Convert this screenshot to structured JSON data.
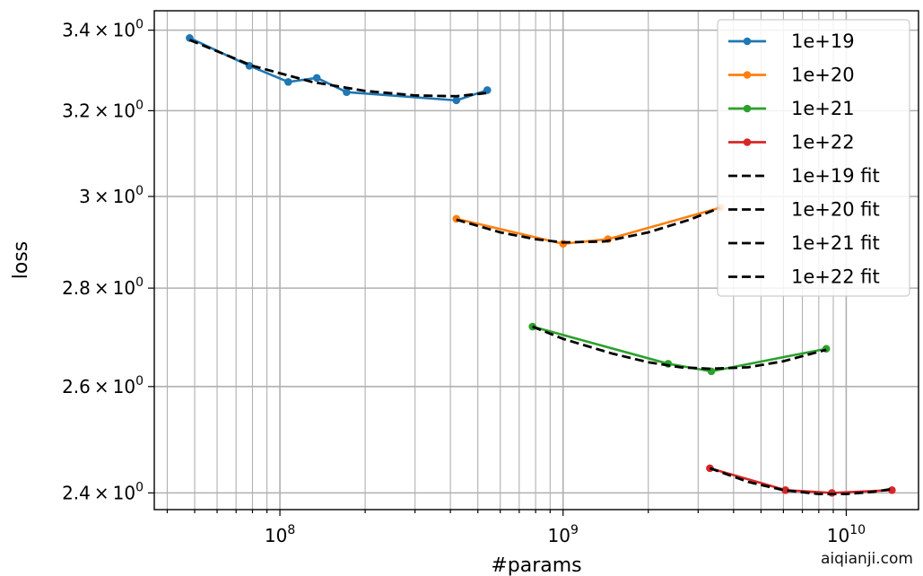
{
  "chart_data": {
    "type": "line",
    "xlabel": "#params",
    "ylabel": "loss",
    "x_scale": "log",
    "y_scale": "log",
    "xlim": [
      36000000,
      18000000000
    ],
    "ylim": [
      2.37,
      3.45
    ],
    "grid": true,
    "legend_position": "top-right",
    "x_ticks": [
      {
        "value": 100000000,
        "label_base": "10",
        "label_exp": "8"
      },
      {
        "value": 1000000000,
        "label_base": "10",
        "label_exp": "9"
      },
      {
        "value": 10000000000,
        "label_base": "10",
        "label_exp": "10"
      }
    ],
    "y_ticks": [
      {
        "value": 2.4,
        "label_mant": "2.4",
        "label_exp": "0"
      },
      {
        "value": 2.6,
        "label_mant": "2.6",
        "label_exp": "0"
      },
      {
        "value": 2.8,
        "label_mant": "2.8",
        "label_exp": "0"
      },
      {
        "value": 3.0,
        "label_mant": "3",
        "label_exp": "0"
      },
      {
        "value": 3.2,
        "label_mant": "3.2",
        "label_exp": "0"
      },
      {
        "value": 3.4,
        "label_mant": "3.4",
        "label_exp": "0"
      }
    ],
    "series": [
      {
        "name": "1e+19",
        "color": "#1f77b4",
        "x": [
          48000000,
          78000000,
          107000000,
          135000000,
          172000000,
          420000000,
          540000000
        ],
        "y": [
          3.38,
          3.31,
          3.27,
          3.28,
          3.245,
          3.225,
          3.25
        ]
      },
      {
        "name": "1e+20",
        "color": "#ff7f0e",
        "x": [
          420000000,
          1000000000,
          1440000000,
          3600000000
        ],
        "y": [
          2.95,
          2.895,
          2.905,
          2.975
        ]
      },
      {
        "name": "1e+21",
        "color": "#2ca02c",
        "x": [
          780000000,
          2350000000,
          3340000000,
          8500000000
        ],
        "y": [
          2.72,
          2.645,
          2.63,
          2.675
        ]
      },
      {
        "name": "1e+22",
        "color": "#d62728",
        "x": [
          3300000000,
          6100000000,
          8900000000,
          14500000000
        ],
        "y": [
          2.445,
          2.405,
          2.4,
          2.405
        ]
      }
    ],
    "fits": [
      {
        "name": "1e+19 fit",
        "color": "#000000",
        "x": [
          48000000,
          80000000,
          130000000,
          200000000,
          300000000,
          420000000,
          540000000
        ],
        "y": [
          3.375,
          3.31,
          3.27,
          3.248,
          3.237,
          3.235,
          3.243
        ]
      },
      {
        "name": "1e+20 fit",
        "color": "#000000",
        "x": [
          420000000,
          600000000,
          800000000,
          1000000000,
          1400000000,
          2000000000,
          2800000000,
          3600000000
        ],
        "y": [
          2.948,
          2.92,
          2.905,
          2.898,
          2.9,
          2.92,
          2.948,
          2.975
        ]
      },
      {
        "name": "1e+21 fit",
        "color": "#000000",
        "x": [
          780000000,
          1000000000,
          1500000000,
          2000000000,
          2600000000,
          3300000000,
          4500000000,
          6000000000,
          8500000000
        ],
        "y": [
          2.72,
          2.695,
          2.665,
          2.648,
          2.638,
          2.635,
          2.638,
          2.65,
          2.673
        ]
      },
      {
        "name": "1e+22 fit",
        "color": "#000000",
        "x": [
          3300000000,
          4500000000,
          6000000000,
          8000000000,
          10000000000,
          12500000000,
          14500000000
        ],
        "y": [
          2.445,
          2.42,
          2.405,
          2.398,
          2.398,
          2.402,
          2.407
        ]
      }
    ]
  },
  "watermark": "aiqianji.com"
}
